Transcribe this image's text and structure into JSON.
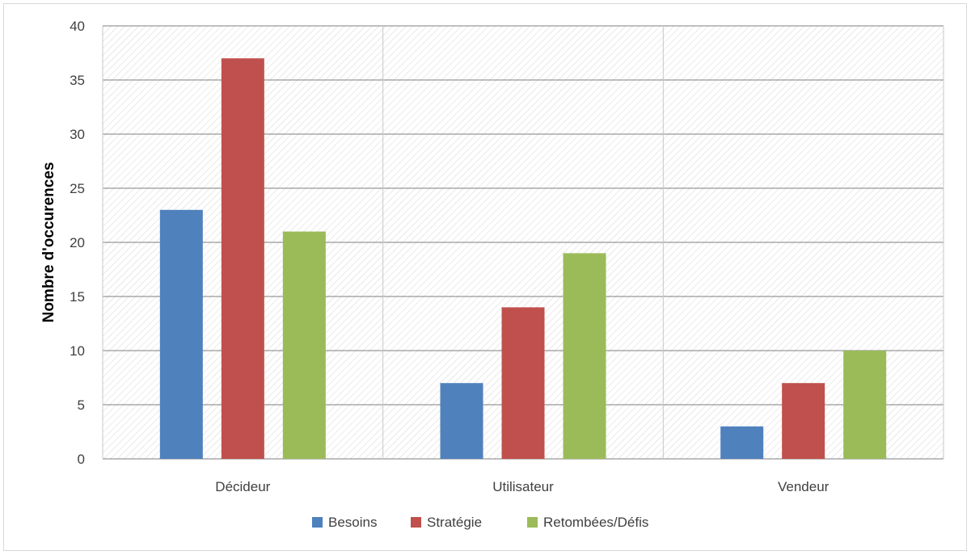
{
  "chart_data": {
    "type": "bar",
    "title": "",
    "xlabel": "",
    "ylabel": "Nombre d'occurences",
    "categories": [
      "Décideur",
      "Utilisateur",
      "Vendeur"
    ],
    "series": [
      {
        "name": "Besoins",
        "values": [
          23,
          7,
          3
        ],
        "color": "#4f81bd"
      },
      {
        "name": "Stratégie",
        "values": [
          37,
          14,
          7
        ],
        "color": "#c0504d"
      },
      {
        "name": "Retombées/Défis",
        "values": [
          21,
          19,
          10
        ],
        "color": "#9bbb59"
      }
    ],
    "ylim": [
      0,
      40
    ],
    "yticks": [
      "0",
      "5",
      "10",
      "15",
      "20",
      "25",
      "30",
      "35",
      "40"
    ],
    "grid": true,
    "legend": "bottom"
  },
  "colors": {
    "grid": "#7f7f7f",
    "hatch": "#d6d6d6",
    "frame": "#d9d9d9"
  }
}
